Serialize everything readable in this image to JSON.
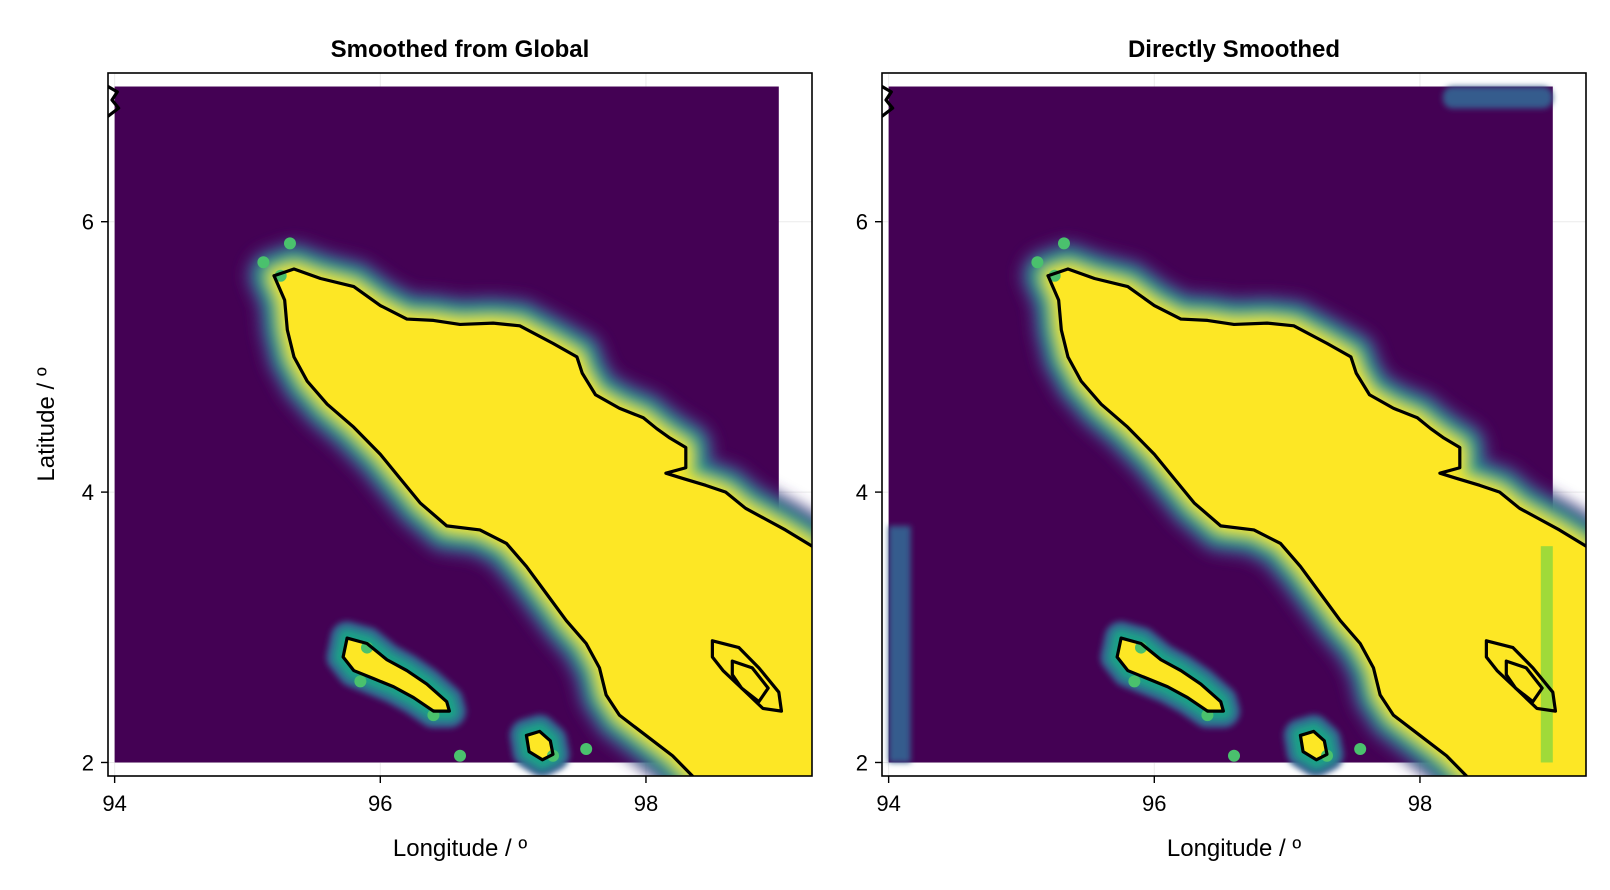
{
  "chart_data": [
    {
      "type": "heatmap",
      "title": "Smoothed from Global",
      "xlabel": "Longitude / º",
      "ylabel": "Latitude / º",
      "xlim": [
        93.95,
        99.25
      ],
      "ylim": [
        1.9,
        7.1
      ],
      "data_extent": {
        "lon": [
          94.0,
          99.0
        ],
        "lat": [
          2.0,
          7.0
        ]
      },
      "xticks": [
        94,
        96,
        98
      ],
      "yticks": [
        2,
        4,
        6
      ],
      "xtick_labels": [
        "94",
        "96",
        "98"
      ],
      "ytick_labels": [
        "2",
        "4",
        "6"
      ],
      "grid": true,
      "colormap": "viridis",
      "edge_halo": false
    },
    {
      "type": "heatmap",
      "title": "Directly Smoothed",
      "xlabel": "Longitude / º",
      "ylabel": "",
      "xlim": [
        93.95,
        99.25
      ],
      "ylim": [
        1.9,
        7.1
      ],
      "data_extent": {
        "lon": [
          94.0,
          99.0
        ],
        "lat": [
          2.0,
          7.0
        ]
      },
      "xticks": [
        94,
        96,
        98
      ],
      "yticks": [
        2,
        4,
        6
      ],
      "xtick_labels": [
        "94",
        "96",
        "98"
      ],
      "ytick_labels": [
        "2",
        "4",
        "6"
      ],
      "grid": true,
      "colormap": "viridis",
      "edge_halo": true
    }
  ],
  "colors": {
    "background_level": "#440154",
    "contour_levels": [
      "#46327e",
      "#365c8d",
      "#277f8e",
      "#1fa187",
      "#4ac16d",
      "#a0da39",
      "#fde725"
    ],
    "land": "#fde725",
    "coastline": "#000000"
  },
  "coastlines": {
    "sumatra_north_coast": [
      [
        95.2,
        5.6
      ],
      [
        95.35,
        5.65
      ],
      [
        95.55,
        5.58
      ],
      [
        95.8,
        5.52
      ],
      [
        96.0,
        5.38
      ],
      [
        96.2,
        5.28
      ],
      [
        96.4,
        5.27
      ],
      [
        96.6,
        5.24
      ],
      [
        96.85,
        5.25
      ],
      [
        97.05,
        5.23
      ],
      [
        97.3,
        5.1
      ],
      [
        97.48,
        5.0
      ],
      [
        97.52,
        4.88
      ],
      [
        97.62,
        4.72
      ],
      [
        97.8,
        4.62
      ],
      [
        97.98,
        4.55
      ],
      [
        98.08,
        4.47
      ],
      [
        98.18,
        4.4
      ],
      [
        98.3,
        4.33
      ],
      [
        98.3,
        4.18
      ],
      [
        98.15,
        4.14
      ],
      [
        98.28,
        4.1
      ],
      [
        98.45,
        4.05
      ],
      [
        98.6,
        4.0
      ],
      [
        98.75,
        3.88
      ],
      [
        98.9,
        3.8
      ],
      [
        99.05,
        3.72
      ],
      [
        99.25,
        3.6
      ]
    ],
    "sumatra_west_coast": [
      [
        95.2,
        5.6
      ],
      [
        95.28,
        5.42
      ],
      [
        95.3,
        5.2
      ],
      [
        95.35,
        5.0
      ],
      [
        95.45,
        4.82
      ],
      [
        95.6,
        4.65
      ],
      [
        95.8,
        4.48
      ],
      [
        96.0,
        4.28
      ],
      [
        96.15,
        4.1
      ],
      [
        96.3,
        3.92
      ],
      [
        96.5,
        3.75
      ],
      [
        96.75,
        3.72
      ],
      [
        96.95,
        3.62
      ],
      [
        97.1,
        3.45
      ],
      [
        97.25,
        3.25
      ],
      [
        97.4,
        3.05
      ],
      [
        97.55,
        2.88
      ],
      [
        97.65,
        2.7
      ],
      [
        97.7,
        2.5
      ],
      [
        97.8,
        2.35
      ],
      [
        98.0,
        2.2
      ],
      [
        98.2,
        2.05
      ],
      [
        98.35,
        1.9
      ]
    ],
    "simeulue": [
      [
        95.75,
        2.92
      ],
      [
        95.9,
        2.88
      ],
      [
        96.05,
        2.76
      ],
      [
        96.2,
        2.68
      ],
      [
        96.35,
        2.58
      ],
      [
        96.5,
        2.45
      ],
      [
        96.52,
        2.38
      ],
      [
        96.4,
        2.38
      ],
      [
        96.25,
        2.48
      ],
      [
        96.1,
        2.56
      ],
      [
        95.95,
        2.62
      ],
      [
        95.8,
        2.68
      ],
      [
        95.72,
        2.78
      ],
      [
        95.75,
        2.92
      ]
    ],
    "banyak": [
      [
        97.1,
        2.2
      ],
      [
        97.2,
        2.23
      ],
      [
        97.28,
        2.16
      ],
      [
        97.3,
        2.06
      ],
      [
        97.22,
        2.02
      ],
      [
        97.12,
        2.08
      ],
      [
        97.1,
        2.2
      ]
    ],
    "toba_outer": [
      [
        98.5,
        2.9
      ],
      [
        98.7,
        2.85
      ],
      [
        98.85,
        2.7
      ],
      [
        99.0,
        2.52
      ],
      [
        99.02,
        2.38
      ],
      [
        98.88,
        2.4
      ],
      [
        98.72,
        2.55
      ],
      [
        98.58,
        2.68
      ],
      [
        98.5,
        2.78
      ],
      [
        98.5,
        2.9
      ]
    ],
    "toba_inner": [
      [
        98.65,
        2.75
      ],
      [
        98.8,
        2.7
      ],
      [
        98.92,
        2.55
      ],
      [
        98.85,
        2.45
      ],
      [
        98.72,
        2.55
      ],
      [
        98.65,
        2.65
      ],
      [
        98.65,
        2.75
      ]
    ],
    "corner_fragment": [
      [
        93.95,
        7.0
      ],
      [
        94.02,
        6.96
      ],
      [
        93.98,
        6.9
      ],
      [
        94.03,
        6.84
      ],
      [
        93.95,
        6.78
      ]
    ]
  },
  "islands": [
    [
      95.32,
      5.84
    ],
    [
      95.12,
      5.7
    ],
    [
      95.25,
      5.6
    ],
    [
      95.9,
      2.85
    ],
    [
      96.4,
      2.35
    ],
    [
      97.3,
      2.05
    ],
    [
      97.55,
      2.1
    ],
    [
      96.6,
      2.05
    ],
    [
      95.85,
      2.6
    ]
  ]
}
